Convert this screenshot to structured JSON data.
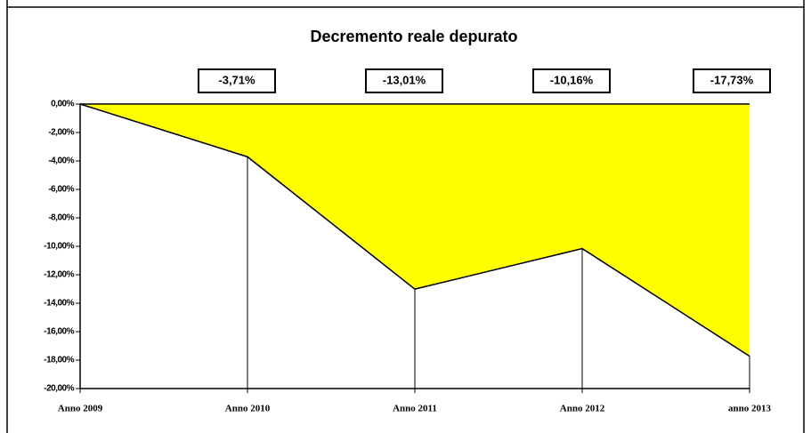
{
  "chart_data": {
    "type": "area",
    "title": "Decremento reale depurato",
    "categories": [
      "Anno 2009",
      "Anno 2010",
      "Anno 2011",
      "Anno 2012",
      "anno 2013"
    ],
    "values": [
      0,
      -3.71,
      -13.01,
      -10.16,
      -17.73
    ],
    "value_labels": [
      null,
      "-3,71%",
      "-13,01%",
      "-10,16%",
      "-17,73%"
    ],
    "color": "#ffff00",
    "ylim": [
      -20,
      0
    ],
    "yticks": [
      {
        "value": 0,
        "label": "0,00%"
      },
      {
        "value": -2,
        "label": "-2,00%"
      },
      {
        "value": -4,
        "label": "-4,00%"
      },
      {
        "value": -6,
        "label": "-6,00%"
      },
      {
        "value": -8,
        "label": "-8,00%"
      },
      {
        "value": -10,
        "label": "-10,00%"
      },
      {
        "value": -12,
        "label": "-12,00%"
      },
      {
        "value": -14,
        "label": "-14,00%"
      },
      {
        "value": -16,
        "label": "-16,00%"
      },
      {
        "value": -18,
        "label": "-18,00%"
      },
      {
        "value": -20,
        "label": "-20,00%"
      }
    ],
    "grid": false
  }
}
